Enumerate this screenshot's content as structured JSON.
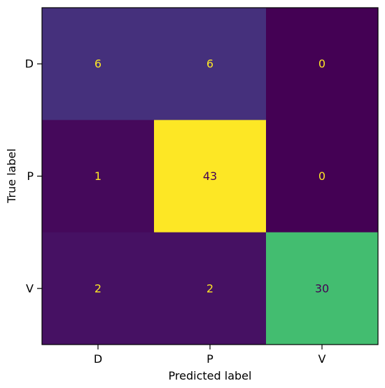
{
  "chart_data": {
    "type": "heatmap",
    "title": "",
    "xlabel": "Predicted label",
    "ylabel": "True label",
    "x_categories": [
      "D",
      "P",
      "V"
    ],
    "y_categories": [
      "D",
      "P",
      "V"
    ],
    "values": [
      [
        6,
        6,
        0
      ],
      [
        1,
        43,
        0
      ],
      [
        2,
        2,
        30
      ]
    ],
    "colormap": "viridis",
    "value_range": [
      0,
      43
    ],
    "grid": false,
    "text_color_light": "#fde725",
    "text_color_dark": "#440154"
  }
}
